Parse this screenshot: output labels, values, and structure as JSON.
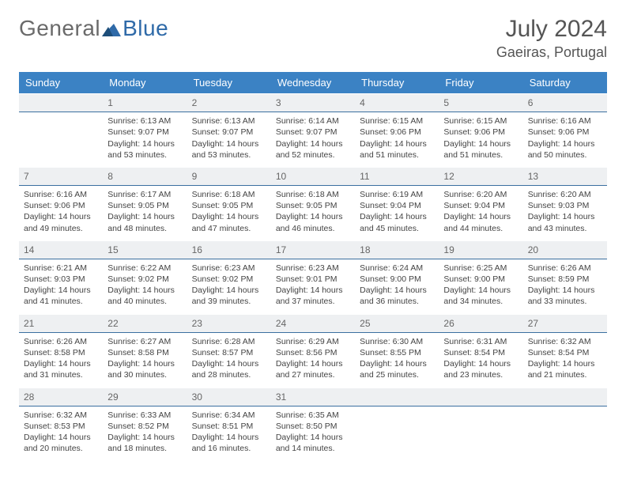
{
  "brand": {
    "text1": "General",
    "text2": "Blue",
    "color1": "#6a6a6a",
    "color2": "#2f6aa8"
  },
  "title": {
    "month": "July 2024",
    "location": "Gaeiras, Portugal"
  },
  "colors": {
    "header_bg": "#3b82c4",
    "header_text": "#ffffff",
    "daynum_bg": "#eef0f2",
    "daynum_border": "#3b6fa0",
    "body_text": "#444444",
    "title_text": "#555555"
  },
  "daynames": [
    "Sunday",
    "Monday",
    "Tuesday",
    "Wednesday",
    "Thursday",
    "Friday",
    "Saturday"
  ],
  "weeks": [
    [
      {
        "n": "",
        "empty": true
      },
      {
        "n": "1",
        "sunrise": "6:13 AM",
        "sunset": "9:07 PM",
        "daylight": "14 hours and 53 minutes."
      },
      {
        "n": "2",
        "sunrise": "6:13 AM",
        "sunset": "9:07 PM",
        "daylight": "14 hours and 53 minutes."
      },
      {
        "n": "3",
        "sunrise": "6:14 AM",
        "sunset": "9:07 PM",
        "daylight": "14 hours and 52 minutes."
      },
      {
        "n": "4",
        "sunrise": "6:15 AM",
        "sunset": "9:06 PM",
        "daylight": "14 hours and 51 minutes."
      },
      {
        "n": "5",
        "sunrise": "6:15 AM",
        "sunset": "9:06 PM",
        "daylight": "14 hours and 51 minutes."
      },
      {
        "n": "6",
        "sunrise": "6:16 AM",
        "sunset": "9:06 PM",
        "daylight": "14 hours and 50 minutes."
      }
    ],
    [
      {
        "n": "7",
        "sunrise": "6:16 AM",
        "sunset": "9:06 PM",
        "daylight": "14 hours and 49 minutes."
      },
      {
        "n": "8",
        "sunrise": "6:17 AM",
        "sunset": "9:05 PM",
        "daylight": "14 hours and 48 minutes."
      },
      {
        "n": "9",
        "sunrise": "6:18 AM",
        "sunset": "9:05 PM",
        "daylight": "14 hours and 47 minutes."
      },
      {
        "n": "10",
        "sunrise": "6:18 AM",
        "sunset": "9:05 PM",
        "daylight": "14 hours and 46 minutes."
      },
      {
        "n": "11",
        "sunrise": "6:19 AM",
        "sunset": "9:04 PM",
        "daylight": "14 hours and 45 minutes."
      },
      {
        "n": "12",
        "sunrise": "6:20 AM",
        "sunset": "9:04 PM",
        "daylight": "14 hours and 44 minutes."
      },
      {
        "n": "13",
        "sunrise": "6:20 AM",
        "sunset": "9:03 PM",
        "daylight": "14 hours and 43 minutes."
      }
    ],
    [
      {
        "n": "14",
        "sunrise": "6:21 AM",
        "sunset": "9:03 PM",
        "daylight": "14 hours and 41 minutes."
      },
      {
        "n": "15",
        "sunrise": "6:22 AM",
        "sunset": "9:02 PM",
        "daylight": "14 hours and 40 minutes."
      },
      {
        "n": "16",
        "sunrise": "6:23 AM",
        "sunset": "9:02 PM",
        "daylight": "14 hours and 39 minutes."
      },
      {
        "n": "17",
        "sunrise": "6:23 AM",
        "sunset": "9:01 PM",
        "daylight": "14 hours and 37 minutes."
      },
      {
        "n": "18",
        "sunrise": "6:24 AM",
        "sunset": "9:00 PM",
        "daylight": "14 hours and 36 minutes."
      },
      {
        "n": "19",
        "sunrise": "6:25 AM",
        "sunset": "9:00 PM",
        "daylight": "14 hours and 34 minutes."
      },
      {
        "n": "20",
        "sunrise": "6:26 AM",
        "sunset": "8:59 PM",
        "daylight": "14 hours and 33 minutes."
      }
    ],
    [
      {
        "n": "21",
        "sunrise": "6:26 AM",
        "sunset": "8:58 PM",
        "daylight": "14 hours and 31 minutes."
      },
      {
        "n": "22",
        "sunrise": "6:27 AM",
        "sunset": "8:58 PM",
        "daylight": "14 hours and 30 minutes."
      },
      {
        "n": "23",
        "sunrise": "6:28 AM",
        "sunset": "8:57 PM",
        "daylight": "14 hours and 28 minutes."
      },
      {
        "n": "24",
        "sunrise": "6:29 AM",
        "sunset": "8:56 PM",
        "daylight": "14 hours and 27 minutes."
      },
      {
        "n": "25",
        "sunrise": "6:30 AM",
        "sunset": "8:55 PM",
        "daylight": "14 hours and 25 minutes."
      },
      {
        "n": "26",
        "sunrise": "6:31 AM",
        "sunset": "8:54 PM",
        "daylight": "14 hours and 23 minutes."
      },
      {
        "n": "27",
        "sunrise": "6:32 AM",
        "sunset": "8:54 PM",
        "daylight": "14 hours and 21 minutes."
      }
    ],
    [
      {
        "n": "28",
        "sunrise": "6:32 AM",
        "sunset": "8:53 PM",
        "daylight": "14 hours and 20 minutes."
      },
      {
        "n": "29",
        "sunrise": "6:33 AM",
        "sunset": "8:52 PM",
        "daylight": "14 hours and 18 minutes."
      },
      {
        "n": "30",
        "sunrise": "6:34 AM",
        "sunset": "8:51 PM",
        "daylight": "14 hours and 16 minutes."
      },
      {
        "n": "31",
        "sunrise": "6:35 AM",
        "sunset": "8:50 PM",
        "daylight": "14 hours and 14 minutes."
      },
      {
        "n": "",
        "empty": true
      },
      {
        "n": "",
        "empty": true
      },
      {
        "n": "",
        "empty": true
      }
    ]
  ],
  "labels": {
    "sunrise": "Sunrise:",
    "sunset": "Sunset:",
    "daylight": "Daylight:"
  }
}
